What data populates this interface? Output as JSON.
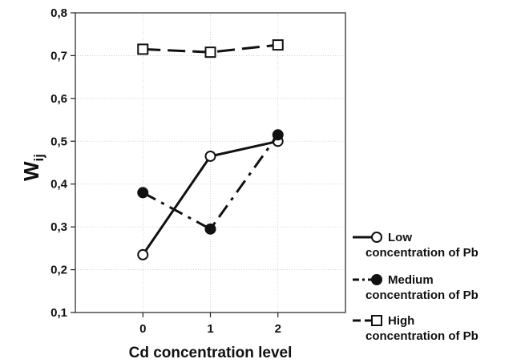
{
  "chart_data": {
    "type": "line",
    "xlabel": "Cd concentration level",
    "ylabel_main": "W",
    "ylabel_sub": "ij",
    "x": [
      0,
      1,
      2
    ],
    "x_tick_labels": [
      "0",
      "1",
      "2"
    ],
    "xlim": [
      -1,
      3
    ],
    "ylim": [
      0.1,
      0.8
    ],
    "y_ticks": [
      0.1,
      0.2,
      0.3,
      0.4,
      0.5,
      0.6,
      0.7,
      0.8
    ],
    "y_tick_labels": [
      "0,1",
      "0,2",
      "0,3",
      "0,4",
      "0,5",
      "0,6",
      "0,7",
      "0,8"
    ],
    "grid": true,
    "legend_position": "bottom-right outside",
    "series": [
      {
        "name": "Low concentration of Pb",
        "legend_lines": [
          "Low",
          "concentration of Pb"
        ],
        "values": [
          0.235,
          0.465,
          0.5
        ],
        "marker": "circle-open",
        "line_style": "solid"
      },
      {
        "name": "Medium concentration of Pb",
        "legend_lines": [
          "Medium",
          "concentration of Pb"
        ],
        "values": [
          0.38,
          0.295,
          0.515
        ],
        "marker": "circle-filled",
        "line_style": "dash-dot"
      },
      {
        "name": "High concentration of Pb",
        "legend_lines": [
          "High",
          "concentration of Pb"
        ],
        "values": [
          0.715,
          0.708,
          0.725
        ],
        "marker": "square-open",
        "line_style": "dashed"
      }
    ]
  }
}
